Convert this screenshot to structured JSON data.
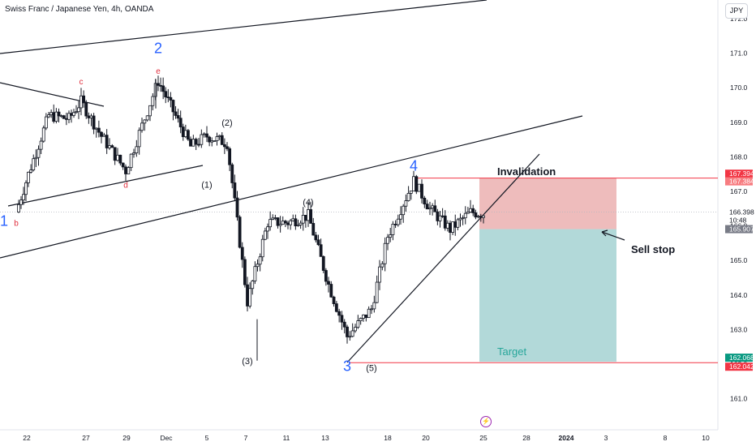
{
  "header": {
    "symbol_title": "Swiss Franc / Japanese Yen, 4h, OANDA",
    "currency_button": "JPY"
  },
  "colors": {
    "up": "#ffffff",
    "down": "#131722",
    "stop_zone": "#e8a5a5",
    "target_zone": "#9fcfcf",
    "red_line": "#f23645",
    "wave_blue": "#2962ff",
    "wave_red": "#e0303f"
  },
  "chart_data": {
    "type": "candlestick",
    "title": "Swiss Franc / Japanese Yen, 4h, OANDA",
    "yaxis": {
      "ticks": [
        161.0,
        162.0,
        163.0,
        164.0,
        165.0,
        166.0,
        167.0,
        168.0,
        169.0,
        170.0,
        171.0,
        172.0
      ],
      "ylim": [
        160.5,
        172.3
      ]
    },
    "xaxis": {
      "ticks": [
        "22",
        "27",
        "29",
        "Dec",
        "5",
        "7",
        "11",
        "13",
        "18",
        "20",
        "25",
        "28",
        "2024",
        "3",
        "8",
        "10"
      ]
    },
    "price_path": [
      [
        "Nov 21",
        166.4
      ],
      [
        "Nov 22",
        167.5
      ],
      [
        "Nov 23",
        169.2
      ],
      [
        "Nov 24",
        169.1
      ],
      [
        "Nov 27",
        169.6
      ],
      [
        "Nov 28",
        168.6
      ],
      [
        "Nov 29",
        167.6
      ],
      [
        "Nov 30",
        168.9
      ],
      [
        "Dec 1",
        170.2
      ],
      [
        "Dec 4",
        168.3
      ],
      [
        "Dec 5",
        168.6
      ],
      [
        "Dec 6",
        168.4
      ],
      [
        "Dec 7",
        163.8
      ],
      [
        "Dec 8",
        166.1
      ],
      [
        "Dec 11",
        166.1
      ],
      [
        "Dec 12",
        166.3
      ],
      [
        "Dec 13",
        164.3
      ],
      [
        "Dec 14",
        162.8
      ],
      [
        "Dec 15",
        163.6
      ],
      [
        "Dec 18",
        165.7
      ],
      [
        "Dec 19",
        167.3
      ],
      [
        "Dec 20",
        166.5
      ],
      [
        "Dec 21",
        165.9
      ],
      [
        "Dec 22",
        166.4
      ],
      [
        "Dec 25",
        166.35
      ]
    ],
    "wave_labels": [
      {
        "text": "1",
        "date": "Nov 20",
        "price": 166.0
      },
      {
        "text": "b",
        "date": "Nov 21",
        "price": 166.0
      },
      {
        "text": "c",
        "date": "Nov 27",
        "price": 170.1
      },
      {
        "text": "d",
        "date": "Nov 29",
        "price": 167.1
      },
      {
        "text": "e",
        "date": "Dec 1",
        "price": 170.4
      },
      {
        "text": "2",
        "date": "Dec 1",
        "price": 171.0
      },
      {
        "text": "(1)",
        "date": "Dec 5",
        "price": 167.1
      },
      {
        "text": "(2)",
        "date": "Dec 6",
        "price": 168.9
      },
      {
        "text": "(3)",
        "date": "Dec 7",
        "price": 162.0
      },
      {
        "text": "(4)",
        "date": "Dec 12",
        "price": 166.6
      },
      {
        "text": "3",
        "date": "Dec 14",
        "price": 161.8
      },
      {
        "text": "(5)",
        "date": "Dec 15",
        "price": 161.8
      },
      {
        "text": "4",
        "date": "Dec 19",
        "price": 167.6
      }
    ],
    "levels": {
      "last_price": 166.398,
      "countdown": "10:48",
      "invalidation_high": 167.394,
      "invalidation_low": 167.384,
      "sell_stop": 165.907,
      "target_high": 162.068,
      "target_low": 162.042
    },
    "annotations": {
      "invalidation": "Invalidation",
      "sell_stop": "Sell stop",
      "target": "Target"
    }
  }
}
